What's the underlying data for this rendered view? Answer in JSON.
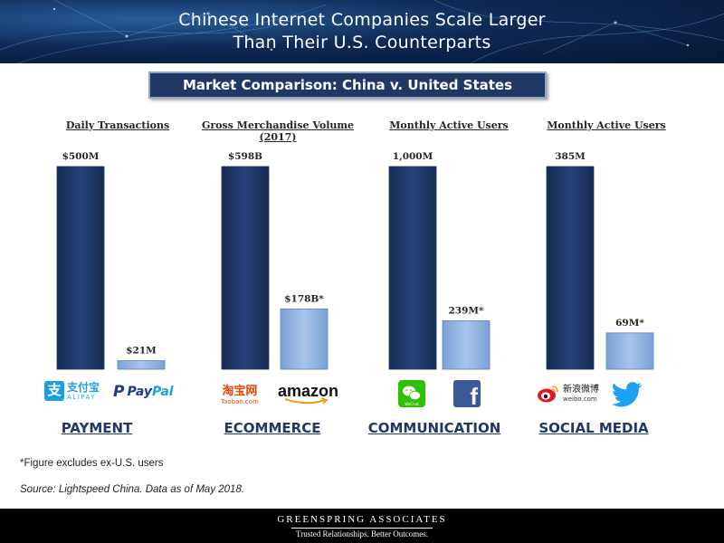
{
  "header": {
    "title_line1": "Chinese Internet Companies Scale Larger",
    "title_line2": "Than Their U.S. Counterparts"
  },
  "subtitle": "Market Comparison: China v. United States",
  "colors": {
    "china_bar": "#1f3864",
    "us_bar": "#8eb4e3",
    "sector_text": "#1f3864"
  },
  "chart_data": {
    "type": "bar",
    "title": "Market Comparison: China v. United States",
    "groups": [
      {
        "metric": "Daily Transactions",
        "sector": "PAYMENT",
        "values": [
          500,
          21
        ],
        "labels": [
          "$500M",
          "$21M"
        ],
        "companies": [
          "Alipay",
          "PayPal"
        ]
      },
      {
        "metric": "Gross Merchandise Volume (2017)",
        "sector": "ECOMMERCE",
        "values": [
          598,
          178
        ],
        "labels": [
          "$598B",
          "$178B*"
        ],
        "companies": [
          "Taobao.com",
          "amazon"
        ]
      },
      {
        "metric": "Monthly Active Users",
        "sector": "COMMUNICATION",
        "values": [
          1000,
          239
        ],
        "labels": [
          "1,000M",
          "239M*"
        ],
        "companies": [
          "WeChat",
          "Facebook"
        ]
      },
      {
        "metric": "Monthly Active Users",
        "sector": "SOCIAL MEDIA",
        "values": [
          385,
          69
        ],
        "labels": [
          "385M",
          "69M*"
        ],
        "companies": [
          "Weibo",
          "Twitter"
        ]
      }
    ]
  },
  "logos": {
    "alipay_cn": "支付宝",
    "alipay_en": "ALIPAY",
    "paypal_p": "P",
    "paypal_1": "Pay",
    "paypal_2": "Pal",
    "taobao_cn": "淘宝网",
    "taobao_en": "Taobao.com",
    "amazon": "amazon",
    "wechat_en": "WeChat",
    "facebook": "f",
    "weibo_cn": "新浪微博",
    "weibo_en": "weibo.com",
    "icons": [
      "alipay-icon",
      "paypal-icon",
      "taobao-icon",
      "amazon-icon",
      "wechat-icon",
      "facebook-icon",
      "weibo-icon",
      "twitter-icon"
    ]
  },
  "footnote": "*Figure excludes ex-U.S. users",
  "source": "Source: Lightspeed China. Data as of May 2018.",
  "footer": {
    "name": "GREENSPRING ASSOCIATES",
    "tagline": "Trusted Relationships. Better Outcomes."
  }
}
